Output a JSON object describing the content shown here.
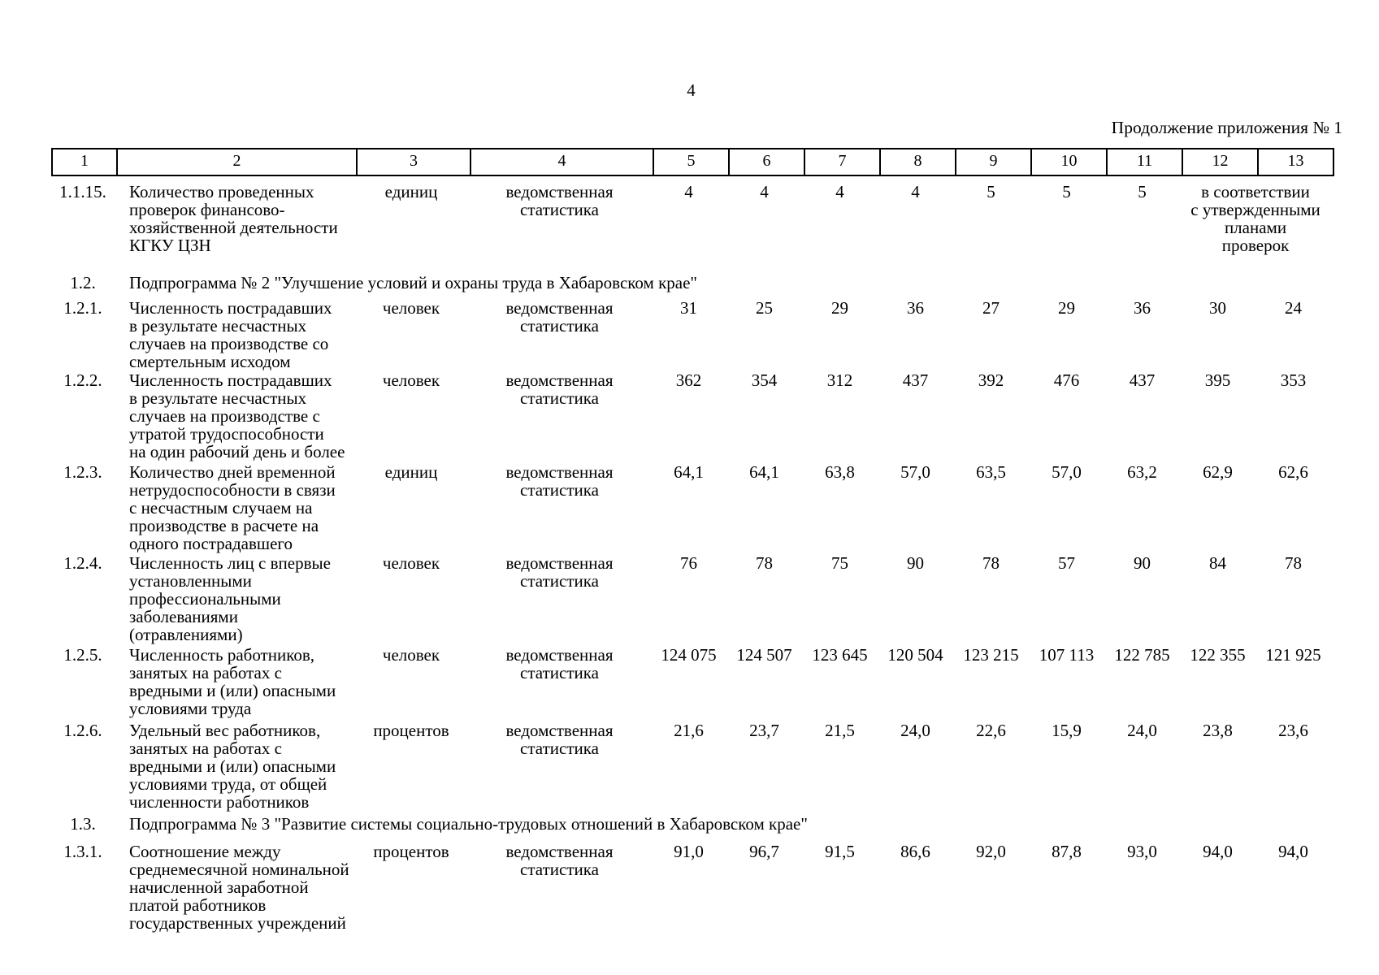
{
  "page": {
    "number": "4",
    "continuation_note": "Продолжение приложения № 1"
  },
  "table": {
    "header_columns": [
      "1",
      "2",
      "3",
      "4",
      "5",
      "6",
      "7",
      "8",
      "9",
      "10",
      "11",
      "12",
      "13"
    ],
    "rows": [
      {
        "kind": "indicator",
        "num": "1.1.15.",
        "name_lines": [
          "Количество проведенных",
          "проверок финансово-",
          "хозяйственной деятельности",
          "КГКУ ЦЗН"
        ],
        "unit": "единиц",
        "source_lines": [
          "ведомственная",
          "статистика"
        ],
        "values": [
          "4",
          "4",
          "4",
          "4",
          "5",
          "5",
          "5"
        ],
        "note_lines": [
          "в соответствии",
          "с утвержденными",
          "планами",
          "проверок"
        ]
      },
      {
        "kind": "section",
        "num": "1.2.",
        "title": "Подпрограмма № 2 \"Улучшение условий и охраны труда в Хабаровском крае\""
      },
      {
        "kind": "indicator",
        "num": "1.2.1.",
        "name_lines": [
          "Численность пострадавших",
          "в результате несчастных",
          "случаев на производстве со",
          "смертельным исходом"
        ],
        "unit": "человек",
        "source_lines": [
          "ведомственная",
          "статистика"
        ],
        "values": [
          "31",
          "25",
          "29",
          "36",
          "27",
          "29",
          "36",
          "30",
          "24"
        ]
      },
      {
        "kind": "indicator",
        "num": "1.2.2.",
        "name_lines": [
          "Численность пострадавших",
          "в результате несчастных",
          "случаев на производстве с",
          "утратой трудоспособности",
          "на один рабочий день и более"
        ],
        "unit": "человек",
        "source_lines": [
          "ведомственная",
          "статистика"
        ],
        "values": [
          "362",
          "354",
          "312",
          "437",
          "392",
          "476",
          "437",
          "395",
          "353"
        ]
      },
      {
        "kind": "indicator",
        "num": "1.2.3.",
        "name_lines": [
          "Количество дней временной",
          "нетрудоспособности в связи",
          "с несчастным случаем на",
          "производстве в расчете на",
          "одного пострадавшего"
        ],
        "unit": "единиц",
        "source_lines": [
          "ведомственная",
          "статистика"
        ],
        "values": [
          "64,1",
          "64,1",
          "63,8",
          "57,0",
          "63,5",
          "57,0",
          "63,2",
          "62,9",
          "62,6"
        ]
      },
      {
        "kind": "indicator",
        "num": "1.2.4.",
        "name_lines": [
          "Численность лиц с впервые",
          "установленными",
          "профессиональными",
          "заболеваниями",
          "(отравлениями)"
        ],
        "unit": "человек",
        "source_lines": [
          "ведомственная",
          "статистика"
        ],
        "values": [
          "76",
          "78",
          "75",
          "90",
          "78",
          "57",
          "90",
          "84",
          "78"
        ]
      },
      {
        "kind": "indicator",
        "num": "1.2.5.",
        "name_lines": [
          "Численность работников,",
          "занятых на работах с",
          "вредными и (или) опасными",
          "условиями труда"
        ],
        "unit": "человек",
        "source_lines": [
          "ведомственная",
          "статистика"
        ],
        "values": [
          "124 075",
          "124 507",
          "123 645",
          "120 504",
          "123 215",
          "107 113",
          "122 785",
          "122 355",
          "121 925"
        ]
      },
      {
        "kind": "indicator",
        "num": "1.2.6.",
        "name_lines": [
          "Удельный вес работников,",
          "занятых на работах с",
          "вредными и (или) опасными",
          "условиями труда, от общей",
          "численности работников"
        ],
        "unit": "процентов",
        "source_lines": [
          "ведомственная",
          "статистика"
        ],
        "values": [
          "21,6",
          "23,7",
          "21,5",
          "24,0",
          "22,6",
          "15,9",
          "24,0",
          "23,8",
          "23,6"
        ]
      },
      {
        "kind": "section",
        "num": "1.3.",
        "title": "Подпрограмма № 3 \"Развитие системы социально-трудовых отношений в Хабаровском крае\""
      },
      {
        "kind": "indicator",
        "num": "1.3.1.",
        "name_lines": [
          "Соотношение между",
          "среднемесячной номинальной",
          "начисленной заработной",
          "платой работников",
          "государственных учреждений"
        ],
        "unit": "процентов",
        "source_lines": [
          "ведомственная",
          "статистика"
        ],
        "values": [
          "91,0",
          "96,7",
          "91,5",
          "86,6",
          "92,0",
          "87,8",
          "93,0",
          "94,0",
          "94,0"
        ]
      }
    ]
  }
}
